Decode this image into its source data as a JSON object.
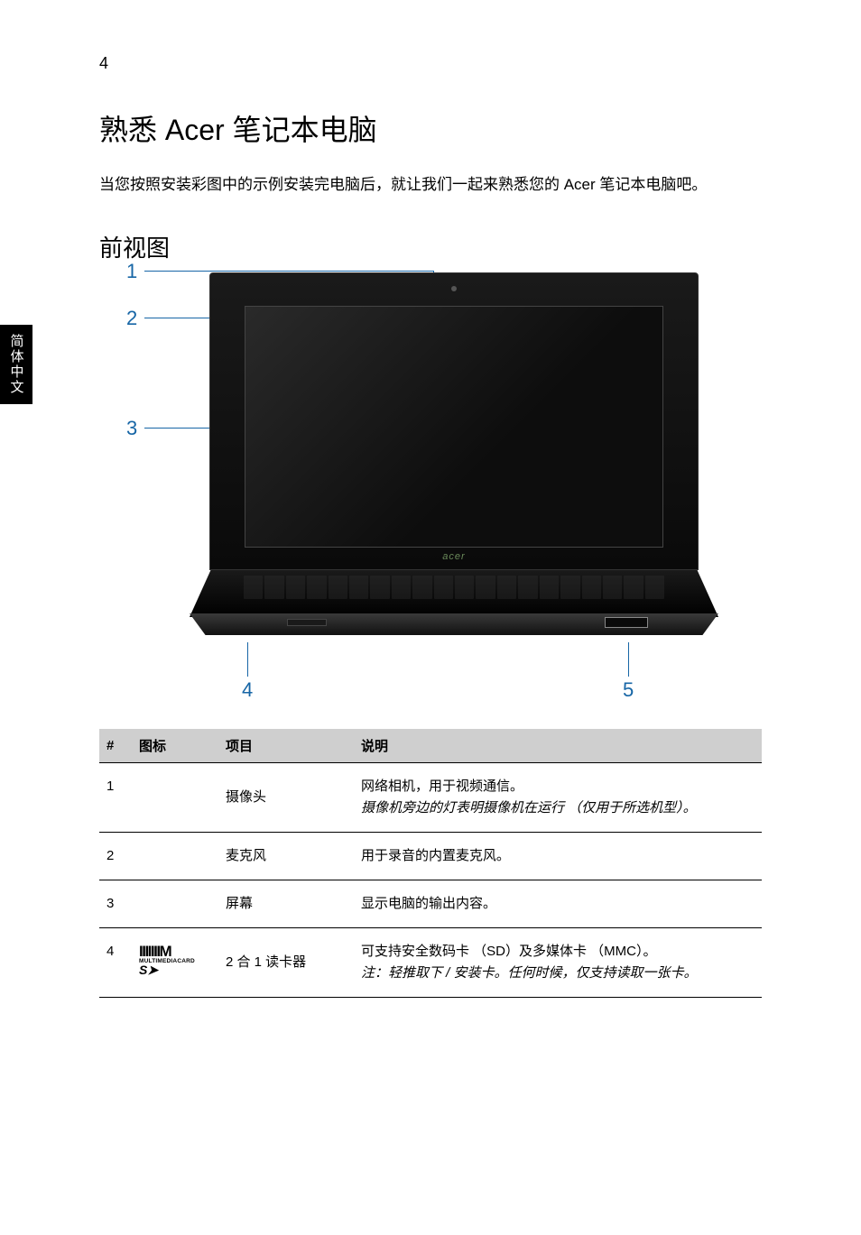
{
  "page_number": "4",
  "side_tab": "简体中文",
  "h1": "熟悉 Acer 笔记本电脑",
  "intro": "当您按照安装彩图中的示例安装完电脑后，就让我们一起来熟悉您的 Acer 笔记本电脑吧。",
  "h2": "前视图",
  "figure": {
    "callouts": [
      "1",
      "2",
      "3",
      "4",
      "5"
    ],
    "logo_text": "acer",
    "colors": {
      "callout": "#1766a6",
      "laptop_body": "#0a0a0a"
    }
  },
  "table": {
    "headers": {
      "num": "#",
      "icon": "图标",
      "item": "项目",
      "desc": "说明"
    },
    "rows": [
      {
        "num": "1",
        "icon": "",
        "item": "摄像头",
        "desc_main": "网络相机，用于视频通信。",
        "desc_note": "摄像机旁边的灯表明摄像机在运行 （仅用于所选机型）。"
      },
      {
        "num": "2",
        "icon": "",
        "item": "麦克风",
        "desc_main": "用于录音的内置麦克风。",
        "desc_note": ""
      },
      {
        "num": "3",
        "icon": "",
        "item": "屏幕",
        "desc_main": "显示电脑的输出内容。",
        "desc_note": ""
      },
      {
        "num": "4",
        "icon": "sd",
        "item": "2 合 1 读卡器",
        "desc_main": "可支持安全数码卡 （SD）及多媒体卡 （MMC）。",
        "desc_note": "注：轻推取下 / 安装卡。任何时候，仅支持读取一张卡。"
      }
    ]
  },
  "sd_icon": {
    "bars": "IIIIIIIM",
    "mmc": "MULTIMEDIACARD",
    "sd": "S➤"
  }
}
